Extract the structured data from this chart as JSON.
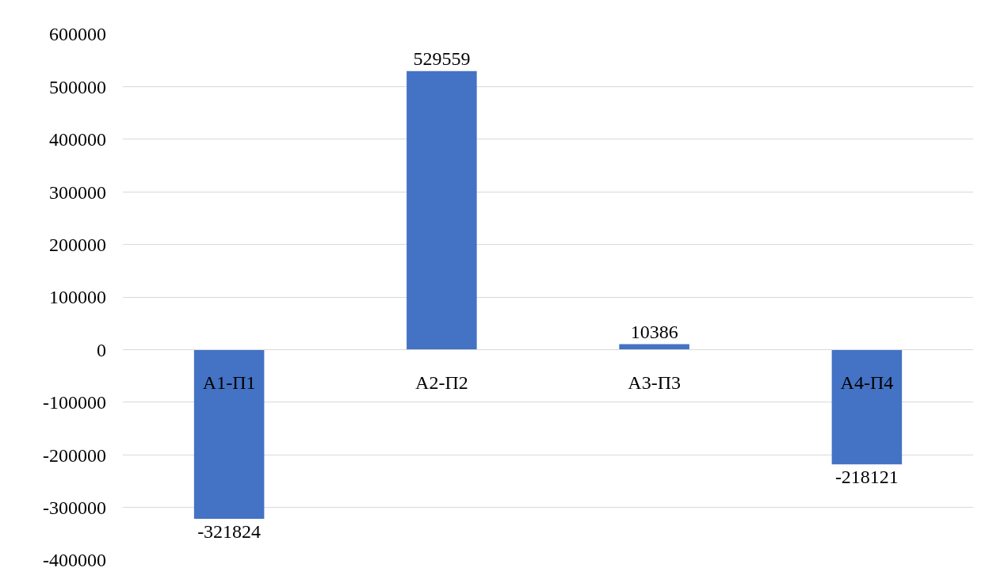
{
  "chart_data": {
    "type": "bar",
    "categories": [
      "А1-П1",
      "А2-П2",
      "А3-П3",
      "А4-П4"
    ],
    "values": [
      -321824,
      529559,
      10386,
      -218121
    ],
    "color": "#4472c4",
    "ylim": [
      -400000,
      600000
    ],
    "yticks": [
      -400000,
      -300000,
      -200000,
      -100000,
      0,
      100000,
      200000,
      300000,
      400000,
      500000,
      600000
    ],
    "grid": "y",
    "data_labels": true
  }
}
